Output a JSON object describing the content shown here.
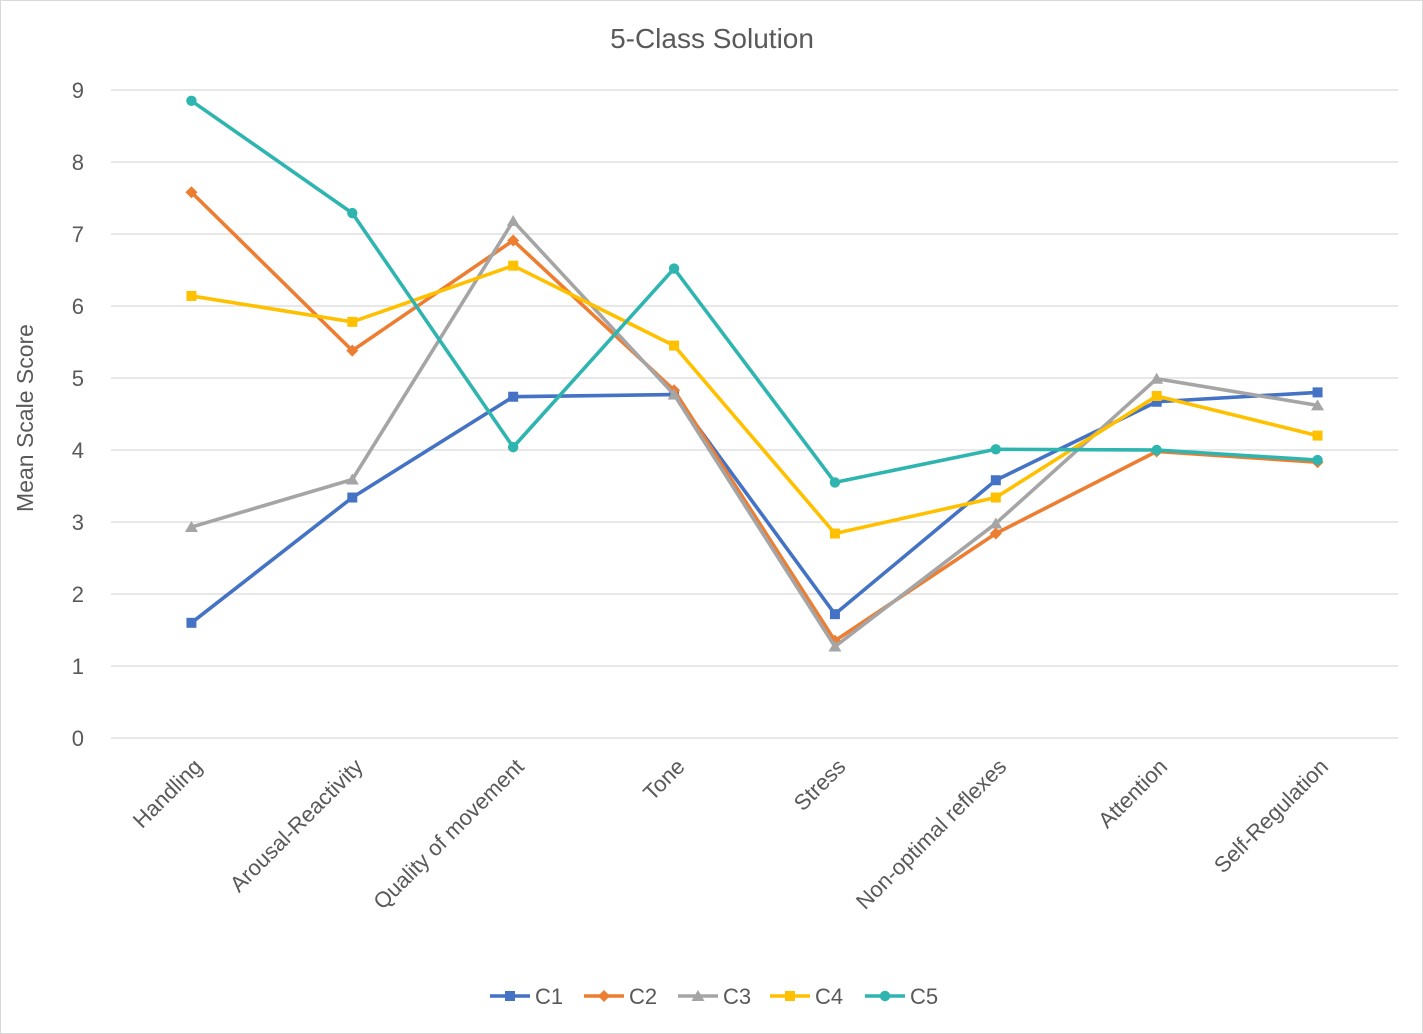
{
  "chart_data": {
    "type": "line",
    "title": "5-Class Solution",
    "xlabel": "",
    "ylabel": "Mean Scale Score",
    "ylim": [
      0,
      9
    ],
    "yticks": [
      0,
      1,
      2,
      3,
      4,
      5,
      6,
      7,
      8,
      9
    ],
    "grid": true,
    "legend_position": "bottom",
    "categories": [
      "Handling",
      "Arousal-Reactivity",
      "Quality of movement",
      "Tone",
      "Stress",
      "Non-optimal reflexes",
      "Attention",
      "Self-Regulation"
    ],
    "series": [
      {
        "name": "C1",
        "color": "#4472c4",
        "marker": "square",
        "values": [
          1.6,
          3.34,
          4.74,
          4.77,
          1.72,
          3.58,
          4.67,
          4.8
        ]
      },
      {
        "name": "C2",
        "color": "#ed7d31",
        "marker": "diamond",
        "values": [
          7.58,
          5.38,
          6.91,
          4.83,
          1.35,
          2.84,
          3.98,
          3.83
        ]
      },
      {
        "name": "C3",
        "color": "#a5a5a5",
        "marker": "triangle",
        "values": [
          2.93,
          3.59,
          7.18,
          4.77,
          1.27,
          2.98,
          4.99,
          4.62
        ]
      },
      {
        "name": "C4",
        "color": "#ffc000",
        "marker": "square",
        "values": [
          6.14,
          5.78,
          6.56,
          5.45,
          2.84,
          3.34,
          4.75,
          4.2
        ]
      },
      {
        "name": "C5",
        "color": "#2fb5b0",
        "marker": "circle",
        "values": [
          8.85,
          7.29,
          4.04,
          6.52,
          3.55,
          4.01,
          4.0,
          3.86
        ]
      }
    ]
  }
}
